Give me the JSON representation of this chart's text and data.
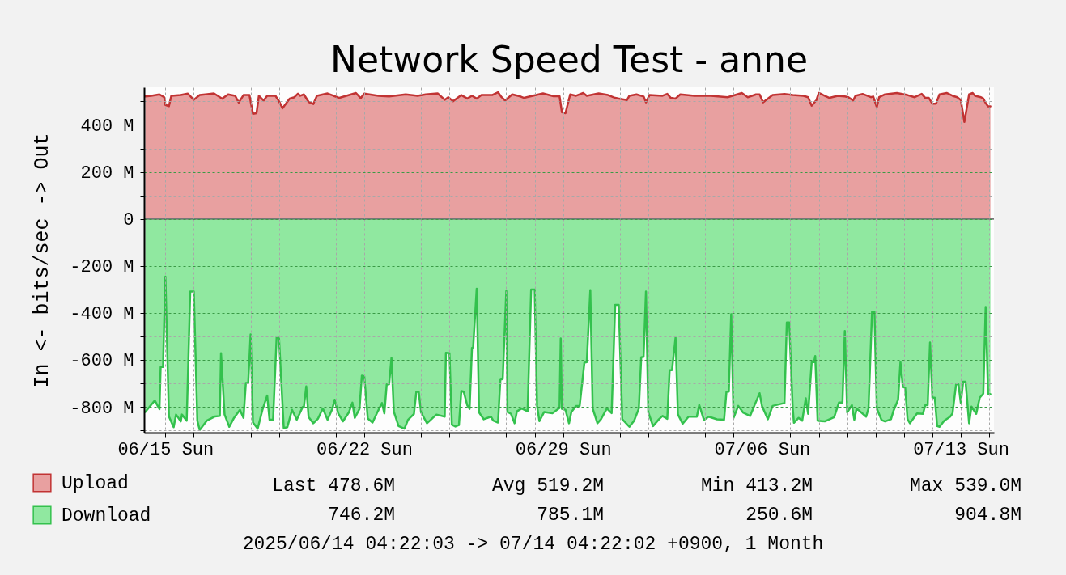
{
  "chart_data": {
    "type": "area",
    "title": "Network Speed Test - anne",
    "ylabel": "In <- bits/sec -> Out",
    "xlim": [
      "2025-06-14T06:00",
      "2025-07-14T04:00"
    ],
    "xticks": [
      {
        "value": "2025-06-15T00:00",
        "label": "06/15 Sun"
      },
      {
        "value": "2025-06-16T00:00",
        "label": null
      },
      {
        "value": "2025-06-17T00:00",
        "label": null
      },
      {
        "value": "2025-06-18T00:00",
        "label": null
      },
      {
        "value": "2025-06-19T00:00",
        "label": null
      },
      {
        "value": "2025-06-20T00:00",
        "label": null
      },
      {
        "value": "2025-06-21T00:00",
        "label": null
      },
      {
        "value": "2025-06-22T00:00",
        "label": "06/22 Sun"
      },
      {
        "value": "2025-06-23T00:00",
        "label": null
      },
      {
        "value": "2025-06-24T00:00",
        "label": null
      },
      {
        "value": "2025-06-25T00:00",
        "label": null
      },
      {
        "value": "2025-06-26T00:00",
        "label": null
      },
      {
        "value": "2025-06-27T00:00",
        "label": null
      },
      {
        "value": "2025-06-28T00:00",
        "label": null
      },
      {
        "value": "2025-06-29T00:00",
        "label": "06/29 Sun"
      },
      {
        "value": "2025-06-30T00:00",
        "label": null
      },
      {
        "value": "2025-07-01T00:00",
        "label": null
      },
      {
        "value": "2025-07-02T00:00",
        "label": null
      },
      {
        "value": "2025-07-03T00:00",
        "label": null
      },
      {
        "value": "2025-07-04T00:00",
        "label": null
      },
      {
        "value": "2025-07-05T00:00",
        "label": null
      },
      {
        "value": "2025-07-06T00:00",
        "label": "07/06 Sun"
      },
      {
        "value": "2025-07-07T00:00",
        "label": null
      },
      {
        "value": "2025-07-08T00:00",
        "label": null
      },
      {
        "value": "2025-07-09T00:00",
        "label": null
      },
      {
        "value": "2025-07-10T00:00",
        "label": null
      },
      {
        "value": "2025-07-11T00:00",
        "label": null
      },
      {
        "value": "2025-07-12T00:00",
        "label": null
      },
      {
        "value": "2025-07-13T00:00",
        "label": "07/13 Sun"
      },
      {
        "value": "2025-07-14T00:00",
        "label": null
      }
    ],
    "ylim": [
      -910,
      560
    ],
    "yticks": [
      {
        "value": -900,
        "label": null
      },
      {
        "value": -800,
        "label": "-800 M"
      },
      {
        "value": -700,
        "label": null
      },
      {
        "value": -600,
        "label": "-600 M"
      },
      {
        "value": -500,
        "label": null
      },
      {
        "value": -400,
        "label": "-400 M"
      },
      {
        "value": -300,
        "label": null
      },
      {
        "value": -200,
        "label": "-200 M"
      },
      {
        "value": -100,
        "label": null
      },
      {
        "value": 0,
        "label": "0"
      },
      {
        "value": 100,
        "label": null
      },
      {
        "value": 200,
        "label": "200 M"
      },
      {
        "value": 300,
        "label": null
      },
      {
        "value": 400,
        "label": "400 M"
      },
      {
        "value": 500,
        "label": null
      }
    ],
    "grid": true,
    "legend": "bottom left",
    "ref_lines": [
      {
        "axis": "y",
        "value": 0,
        "color": "#777777"
      }
    ],
    "series": [
      {
        "name": "Upload",
        "color": "#e8a0a0",
        "x": [
          "2025-06-14T07:00",
          "2025-06-14T12:00",
          "2025-06-14T19:00",
          "2025-06-14T23:00",
          "2025-06-15T00:00",
          "2025-06-15T03:00",
          "2025-06-15T05:00",
          "2025-06-15T13:00",
          "2025-06-15T19:00",
          "2025-06-16T00:00",
          "2025-06-16T05:00",
          "2025-06-16T17:00",
          "2025-06-17T00:00",
          "2025-06-17T05:00",
          "2025-06-17T11:00",
          "2025-06-17T14:00",
          "2025-06-17T18:00",
          "2025-06-17T23:00",
          "2025-06-18T02:00",
          "2025-06-18T05:00",
          "2025-06-18T07:00",
          "2025-06-18T11:00",
          "2025-06-18T14:00",
          "2025-06-18T21:00",
          "2025-06-19T00:00",
          "2025-06-19T03:00",
          "2025-06-19T09:00",
          "2025-06-19T13:00",
          "2025-06-19T16:00",
          "2025-06-19T18:00",
          "2025-06-19T21:00",
          "2025-06-20T01:00",
          "2025-06-20T05:00",
          "2025-06-20T08:00",
          "2025-06-20T17:00",
          "2025-06-20T22:00",
          "2025-06-21T03:00",
          "2025-06-21T17:00",
          "2025-06-21T21:00",
          "2025-06-22T00:00",
          "2025-06-22T12:00",
          "2025-06-22T21:00",
          "2025-06-23T11:00",
          "2025-06-23T21:00",
          "2025-06-24T04:00",
          "2025-06-24T14:00",
          "2025-06-24T20:00",
          "2025-06-24T23:00",
          "2025-06-25T03:00",
          "2025-06-25T10:00",
          "2025-06-25T15:00",
          "2025-06-25T19:00",
          "2025-06-25T23:00",
          "2025-06-26T03:00",
          "2025-06-26T12:00",
          "2025-06-26T17:00",
          "2025-06-26T20:00",
          "2025-06-26T23:00",
          "2025-06-27T05:00",
          "2025-06-27T12:00",
          "2025-06-27T15:00",
          "2025-06-28T07:00",
          "2025-06-28T16:00",
          "2025-06-28T21:00",
          "2025-06-28T23:00",
          "2025-06-29T02:00",
          "2025-06-29T06:00",
          "2025-06-29T11:00",
          "2025-06-29T17:00",
          "2025-06-29T20:00",
          "2025-06-30T06:00",
          "2025-06-30T14:00",
          "2025-06-30T20:00",
          "2025-07-01T06:00",
          "2025-07-01T08:00",
          "2025-07-01T14:00",
          "2025-07-01T20:00",
          "2025-07-01T22:00",
          "2025-07-02T01:00",
          "2025-07-02T12:00",
          "2025-07-02T16:00",
          "2025-07-02T19:00",
          "2025-07-02T23:00",
          "2025-07-03T03:00",
          "2025-07-03T15:00",
          "2025-07-04T05:00",
          "2025-07-04T19:00",
          "2025-07-05T07:00",
          "2025-07-05T12:00",
          "2025-07-05T19:00",
          "2025-07-05T22:00",
          "2025-07-06T01:00",
          "2025-07-06T05:00",
          "2025-07-06T09:00",
          "2025-07-06T19:00",
          "2025-07-07T02:00",
          "2025-07-07T11:00",
          "2025-07-07T15:00",
          "2025-07-07T18:00",
          "2025-07-07T22:00",
          "2025-07-08T00:00",
          "2025-07-08T09:00",
          "2025-07-08T16:00",
          "2025-07-08T22:00",
          "2025-07-09T01:00",
          "2025-07-09T05:00",
          "2025-07-09T07:00",
          "2025-07-09T13:00",
          "2025-07-09T20:00",
          "2025-07-09T22:00",
          "2025-07-10T01:00",
          "2025-07-10T03:00",
          "2025-07-10T08:00",
          "2025-07-10T18:00",
          "2025-07-11T03:00",
          "2025-07-11T09:00",
          "2025-07-11T15:00",
          "2025-07-11T18:00",
          "2025-07-11T21:00",
          "2025-07-12T00:00",
          "2025-07-12T03:00",
          "2025-07-12T06:00",
          "2025-07-12T12:00",
          "2025-07-12T17:00",
          "2025-07-12T21:00",
          "2025-07-13T00:00",
          "2025-07-13T03:00",
          "2025-07-13T07:00",
          "2025-07-13T10:00",
          "2025-07-13T12:00",
          "2025-07-13T17:00",
          "2025-07-13T19:00",
          "2025-07-13T21:00",
          "2025-07-13T23:00",
          "2025-07-14T01:00"
        ],
        "values": [
          521,
          524,
          530,
          518,
          485,
          480,
          524,
          527,
          533,
          507,
          527,
          534,
          512,
          530,
          524,
          495,
          527,
          527,
          447,
          450,
          524,
          504,
          524,
          524,
          501,
          471,
          512,
          518,
          533,
          524,
          530,
          498,
          489,
          524,
          534,
          524,
          515,
          536,
          514,
          533,
          524,
          521,
          530,
          524,
          530,
          534,
          507,
          518,
          501,
          527,
          512,
          524,
          512,
          527,
          527,
          539,
          518,
          504,
          530,
          521,
          515,
          534,
          522,
          522,
          454,
          450,
          530,
          524,
          536,
          524,
          534,
          527,
          515,
          506,
          524,
          530,
          521,
          496,
          527,
          524,
          532,
          515,
          512,
          530,
          524,
          524,
          518,
          536,
          518,
          530,
          530,
          496,
          512,
          527,
          532,
          527,
          524,
          518,
          482,
          506,
          536,
          515,
          524,
          521,
          518,
          504,
          524,
          532,
          518,
          521,
          476,
          518,
          530,
          536,
          527,
          518,
          532,
          515,
          515,
          490,
          490,
          530,
          536,
          524,
          518,
          506,
          413,
          530,
          536,
          524,
          518,
          512,
          493,
          479,
          479
        ]
      },
      {
        "name": "Download",
        "color": "#90e8a0",
        "x": [
          "2025-06-14T07:00",
          "2025-06-14T15:00",
          "2025-06-14T19:00",
          "2025-06-14T20:00",
          "2025-06-14T22:00",
          "2025-06-15T00:00",
          "2025-06-15T03:00",
          "2025-06-15T07:00",
          "2025-06-15T09:00",
          "2025-06-15T13:00",
          "2025-06-15T14:00",
          "2025-06-15T18:00",
          "2025-06-15T21:00",
          "2025-06-16T00:00",
          "2025-06-16T03:00",
          "2025-06-16T05:00",
          "2025-06-16T11:00",
          "2025-06-16T18:00",
          "2025-06-16T22:00",
          "2025-06-16T23:00",
          "2025-06-17T02:00",
          "2025-06-17T06:00",
          "2025-06-17T10:00",
          "2025-06-17T15:00",
          "2025-06-17T18:00",
          "2025-06-17T20:00",
          "2025-06-17T22:00",
          "2025-06-18T00:00",
          "2025-06-18T02:00",
          "2025-06-18T06:00",
          "2025-06-18T10:00",
          "2025-06-18T14:00",
          "2025-06-18T16:00",
          "2025-06-18T19:00",
          "2025-06-18T22:00",
          "2025-06-19T00:00",
          "2025-06-19T04:00",
          "2025-06-19T07:00",
          "2025-06-19T11:00",
          "2025-06-19T15:00",
          "2025-06-19T20:00",
          "2025-06-19T21:00",
          "2025-06-19T23:00",
          "2025-06-20T01:00",
          "2025-06-20T05:00",
          "2025-06-20T09:00",
          "2025-06-20T13:00",
          "2025-06-20T17:00",
          "2025-06-20T21:00",
          "2025-06-20T23:00",
          "2025-06-21T02:00",
          "2025-06-21T06:00",
          "2025-06-21T11:00",
          "2025-06-21T14:00",
          "2025-06-21T16:00",
          "2025-06-21T20:00",
          "2025-06-21T22:00",
          "2025-06-22T00:00",
          "2025-06-22T03:00",
          "2025-06-22T07:00",
          "2025-06-22T11:00",
          "2025-06-22T15:00",
          "2025-06-22T17:00",
          "2025-06-22T19:00",
          "2025-06-22T21:00",
          "2025-06-22T23:00",
          "2025-06-23T01:00",
          "2025-06-23T05:00",
          "2025-06-23T10:00",
          "2025-06-23T13:00",
          "2025-06-23T18:00",
          "2025-06-23T20:00",
          "2025-06-23T22:00",
          "2025-06-24T00:00",
          "2025-06-24T05:00",
          "2025-06-24T13:00",
          "2025-06-24T20:00",
          "2025-06-24T21:00",
          "2025-06-25T00:00",
          "2025-06-25T02:00",
          "2025-06-25T05:00",
          "2025-06-25T08:00",
          "2025-06-25T10:00",
          "2025-06-25T12:00",
          "2025-06-25T15:00",
          "2025-06-25T17:00",
          "2025-06-25T19:00",
          "2025-06-25T20:00",
          "2025-06-25T23:00",
          "2025-06-26T01:00",
          "2025-06-26T05:00",
          "2025-06-26T11:00",
          "2025-06-26T13:00",
          "2025-06-26T17:00",
          "2025-06-26T19:00",
          "2025-06-26T21:00",
          "2025-06-27T00:00",
          "2025-06-27T01:00",
          "2025-06-27T04:00",
          "2025-06-27T07:00",
          "2025-06-27T09:00",
          "2025-06-27T13:00",
          "2025-06-27T18:00",
          "2025-06-27T21:00",
          "2025-06-28T00:00",
          "2025-06-28T02:00",
          "2025-06-28T04:00",
          "2025-06-28T08:00",
          "2025-06-28T15:00",
          "2025-06-28T21:00",
          "2025-06-28T22:00",
          "2025-06-28T23:00",
          "2025-06-29T02:00",
          "2025-06-29T05:00",
          "2025-06-29T07:00",
          "2025-06-29T11:00",
          "2025-06-29T14:00",
          "2025-06-29T18:00",
          "2025-06-29T20:00",
          "2025-06-29T23:00",
          "2025-06-30T01:00",
          "2025-06-30T05:00",
          "2025-06-30T08:00",
          "2025-06-30T13:00",
          "2025-06-30T17:00",
          "2025-06-30T20:00",
          "2025-06-30T23:00",
          "2025-07-01T02:00",
          "2025-07-01T08:00",
          "2025-07-01T12:00",
          "2025-07-01T16:00",
          "2025-07-01T18:00",
          "2025-07-01T20:00",
          "2025-07-01T22:00",
          "2025-07-02T00:00",
          "2025-07-02T04:00",
          "2025-07-02T09:00",
          "2025-07-02T12:00",
          "2025-07-02T16:00",
          "2025-07-02T18:00",
          "2025-07-02T20:00",
          "2025-07-02T23:00",
          "2025-07-03T01:00",
          "2025-07-03T05:00",
          "2025-07-03T10:00",
          "2025-07-03T17:00",
          "2025-07-03T19:00",
          "2025-07-03T23:00",
          "2025-07-04T03:00",
          "2025-07-04T10:00",
          "2025-07-04T16:00",
          "2025-07-04T18:00",
          "2025-07-04T20:00",
          "2025-07-04T22:00",
          "2025-07-05T00:00",
          "2025-07-05T04:00",
          "2025-07-05T08:00",
          "2025-07-05T14:00",
          "2025-07-05T18:00",
          "2025-07-05T22:00",
          "2025-07-06T00:00",
          "2025-07-06T05:00",
          "2025-07-06T09:00",
          "2025-07-06T19:00",
          "2025-07-06T21:00",
          "2025-07-06T23:00",
          "2025-07-07T02:00",
          "2025-07-07T03:00",
          "2025-07-07T07:00",
          "2025-07-07T10:00",
          "2025-07-07T13:00",
          "2025-07-07T15:00",
          "2025-07-07T18:00",
          "2025-07-07T20:00",
          "2025-07-07T21:00",
          "2025-07-07T23:00",
          "2025-07-08T05:00",
          "2025-07-08T13:00",
          "2025-07-08T17:00",
          "2025-07-08T20:00",
          "2025-07-08T22:00",
          "2025-07-09T00:00",
          "2025-07-09T04:00",
          "2025-07-09T06:00",
          "2025-07-09T08:00",
          "2025-07-09T16:00",
          "2025-07-09T18:00",
          "2025-07-09T21:00",
          "2025-07-09T23:00",
          "2025-07-10T01:00",
          "2025-07-10T05:00",
          "2025-07-10T08:00",
          "2025-07-10T13:00",
          "2025-07-10T15:00",
          "2025-07-10T19:00",
          "2025-07-10T21:00",
          "2025-07-10T23:00",
          "2025-07-11T01:00",
          "2025-07-11T03:00",
          "2025-07-11T05:00",
          "2025-07-11T11:00",
          "2025-07-11T16:00",
          "2025-07-11T18:00",
          "2025-07-11T20:00",
          "2025-07-11T22:00",
          "2025-07-12T00:00",
          "2025-07-12T02:00",
          "2025-07-12T04:00",
          "2025-07-12T06:00",
          "2025-07-12T10:00",
          "2025-07-12T15:00",
          "2025-07-12T17:00",
          "2025-07-12T20:00",
          "2025-07-12T22:00",
          "2025-07-13T00:00",
          "2025-07-13T02:00",
          "2025-07-13T04:00",
          "2025-07-13T07:00",
          "2025-07-13T09:00",
          "2025-07-13T13:00",
          "2025-07-13T16:00",
          "2025-07-13T19:00",
          "2025-07-13T21:00",
          "2025-07-13T23:00",
          "2025-07-14T01:00"
        ],
        "values": [
          -822,
          -773,
          -810,
          -630,
          -630,
          -246,
          -841,
          -887,
          -833,
          -862,
          -833,
          -859,
          -309,
          -309,
          -859,
          -899,
          -859,
          -841,
          -839,
          -572,
          -833,
          -885,
          -847,
          -813,
          -847,
          -698,
          -698,
          -492,
          -867,
          -893,
          -813,
          -752,
          -855,
          -855,
          -504,
          -507,
          -890,
          -887,
          -813,
          -855,
          -801,
          -801,
          -713,
          -844,
          -870,
          -850,
          -807,
          -855,
          -809,
          -770,
          -828,
          -862,
          -824,
          -782,
          -847,
          -809,
          -667,
          -670,
          -850,
          -867,
          -824,
          -784,
          -828,
          -704,
          -704,
          -592,
          -821,
          -882,
          -893,
          -855,
          -830,
          -736,
          -736,
          -824,
          -870,
          -833,
          -842,
          -570,
          -572,
          -876,
          -884,
          -878,
          -733,
          -735,
          -793,
          -809,
          -549,
          -547,
          -297,
          -824,
          -853,
          -842,
          -859,
          -867,
          -685,
          -681,
          -307,
          -822,
          -830,
          -870,
          -819,
          -807,
          -819,
          -301,
          -301,
          -796,
          -861,
          -822,
          -827,
          -805,
          -509,
          -809,
          -813,
          -870,
          -822,
          -796,
          -796,
          -612,
          -610,
          -303,
          -807,
          -870,
          -853,
          -807,
          -827,
          -366,
          -366,
          -853,
          -885,
          -859,
          -807,
          -589,
          -587,
          -309,
          -824,
          -882,
          -853,
          -839,
          -851,
          -644,
          -644,
          -506,
          -832,
          -872,
          -842,
          -842,
          -792,
          -856,
          -842,
          -853,
          -855,
          -736,
          -735,
          -406,
          -847,
          -796,
          -824,
          -839,
          -790,
          -742,
          -796,
          -853,
          -796,
          -784,
          -441,
          -441,
          -807,
          -868,
          -847,
          -859,
          -764,
          -830,
          -610,
          -610,
          -584,
          -859,
          -862,
          -844,
          -782,
          -782,
          -477,
          -824,
          -793,
          -855,
          -807,
          -842,
          -807,
          -395,
          -395,
          -807,
          -856,
          -862,
          -853,
          -819,
          -770,
          -610,
          -715,
          -719,
          -853,
          -870,
          -828,
          -830,
          -793,
          -793,
          -526,
          -761,
          -761,
          -882,
          -885,
          -859,
          -842,
          -828,
          -704,
          -704,
          -784,
          -693,
          -693,
          -870,
          -799,
          -830,
          -761,
          -744,
          -375,
          -744,
          -746
        ]
      }
    ],
    "annotations": [
      "Last 478.6M",
      "Avg 519.2M",
      "Min 413.2M",
      "Max 539.0M",
      "746.2M",
      "785.1M",
      "250.6M",
      "904.8M",
      "2025/06/14 04:22:03 -> 07/14 04:22:02 +0900, 1 Month"
    ]
  }
}
